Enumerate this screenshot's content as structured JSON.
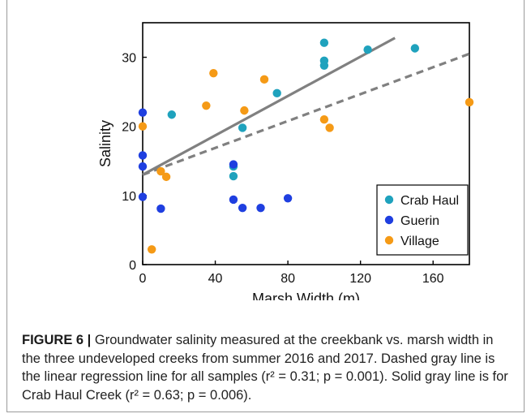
{
  "chart_data": {
    "type": "scatter",
    "xlabel": "Marsh Width (m)",
    "ylabel": "Salinity",
    "xlim": [
      0,
      180
    ],
    "ylim": [
      0,
      35
    ],
    "xticks": [
      0,
      40,
      80,
      120,
      160
    ],
    "yticks": [
      0,
      10,
      20,
      30
    ],
    "legend_position": "bottom-right",
    "series": [
      {
        "name": "Crab Haul",
        "color": "#1fa2bd",
        "points": [
          [
            16,
            21.7
          ],
          [
            50,
            12.8
          ],
          [
            50,
            14.2
          ],
          [
            55,
            19.8
          ],
          [
            74,
            24.8
          ],
          [
            100,
            32.1
          ],
          [
            100,
            29.5
          ],
          [
            100,
            28.8
          ],
          [
            124,
            31.1
          ],
          [
            150,
            31.3
          ]
        ]
      },
      {
        "name": "Guerin",
        "color": "#1f3fe0",
        "points": [
          [
            0,
            22
          ],
          [
            0,
            15.8
          ],
          [
            0,
            14.2
          ],
          [
            0,
            9.8
          ],
          [
            10,
            8.1
          ],
          [
            50,
            14.5
          ],
          [
            50,
            9.4
          ],
          [
            55,
            8.2
          ],
          [
            65,
            8.2
          ],
          [
            80,
            9.6
          ]
        ]
      },
      {
        "name": "Village",
        "color": "#f59a16",
        "points": [
          [
            0,
            20
          ],
          [
            5,
            2.2
          ],
          [
            10,
            13.5
          ],
          [
            13,
            12.7
          ],
          [
            35,
            23
          ],
          [
            39,
            27.7
          ],
          [
            56,
            22.3
          ],
          [
            67,
            26.8
          ],
          [
            100,
            21
          ],
          [
            103,
            19.8
          ],
          [
            180,
            23.5
          ]
        ]
      }
    ],
    "lines": [
      {
        "style": "solid",
        "color": "#808080",
        "from": [
          0,
          13
        ],
        "to": [
          139,
          32.8
        ]
      },
      {
        "style": "dashed",
        "color": "#808080",
        "from": [
          0,
          13
        ],
        "to": [
          180,
          30.5
        ]
      }
    ]
  },
  "caption": {
    "label": "FIGURE 6 |",
    "text": " Groundwater salinity measured at the creekbank vs. marsh width in the three undeveloped creeks from summer 2016 and 2017. Dashed gray line is the linear regression line for all samples (r² = 0.31; p = 0.001). Solid gray line is for Crab Haul Creek (r² = 0.63; p = 0.006)."
  }
}
